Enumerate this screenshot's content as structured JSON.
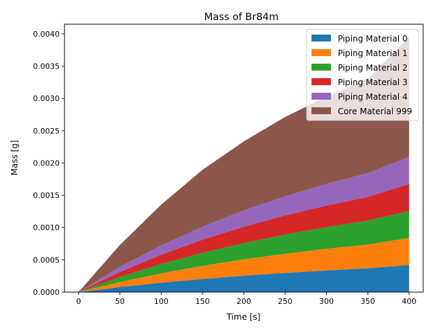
{
  "chart_data": {
    "type": "area",
    "stacked": true,
    "title": "Mass of Br84m",
    "xlabel": "Time [s]",
    "ylabel": "Mass [g]",
    "xlim": [
      -17,
      417
    ],
    "ylim": [
      0,
      0.00415
    ],
    "x_ticks": [
      0,
      50,
      100,
      150,
      200,
      250,
      300,
      350,
      400
    ],
    "y_ticks": [
      0,
      0.0005,
      0.001,
      0.0015,
      0.002,
      0.0025,
      0.003,
      0.0035,
      0.004
    ],
    "x_tick_labels": [
      "0",
      "50",
      "100",
      "150",
      "200",
      "250",
      "300",
      "350",
      "400"
    ],
    "y_tick_labels": [
      "0.0000",
      "0.0005",
      "0.0010",
      "0.0015",
      "0.0020",
      "0.0025",
      "0.0030",
      "0.0035",
      "0.0040"
    ],
    "legend_position": "top-right",
    "grid": false,
    "x": [
      0,
      50,
      100,
      150,
      200,
      250,
      300,
      350,
      400
    ],
    "series": [
      {
        "name": "Piping Material 0",
        "color": "#1f77b4",
        "values": [
          0,
          7.8e-05,
          0.000145,
          0.000203,
          0.000253,
          0.000297,
          0.000335,
          0.000369,
          0.000419
        ]
      },
      {
        "name": "Piping Material 1",
        "color": "#ff7f0e",
        "values": [
          0,
          7.8e-05,
          0.000145,
          0.000203,
          0.000253,
          0.000297,
          0.000335,
          0.000369,
          0.000419
        ]
      },
      {
        "name": "Piping Material 2",
        "color": "#2ca02c",
        "values": [
          0,
          7.8e-05,
          0.000145,
          0.000203,
          0.000253,
          0.000297,
          0.000335,
          0.000369,
          0.000419
        ]
      },
      {
        "name": "Piping Material 3",
        "color": "#d62728",
        "values": [
          0,
          7.8e-05,
          0.000145,
          0.000203,
          0.000253,
          0.000297,
          0.000335,
          0.000369,
          0.000419
        ]
      },
      {
        "name": "Piping Material 4",
        "color": "#9467bd",
        "values": [
          0,
          7.8e-05,
          0.000145,
          0.000203,
          0.000253,
          0.000297,
          0.000335,
          0.000369,
          0.000419
        ]
      },
      {
        "name": "Core Material 999",
        "color": "#8c564b",
        "values": [
          0,
          0.00034,
          0.00063,
          0.00088,
          0.00107,
          0.00123,
          0.00135,
          0.00146,
          0.00186
        ]
      }
    ]
  }
}
